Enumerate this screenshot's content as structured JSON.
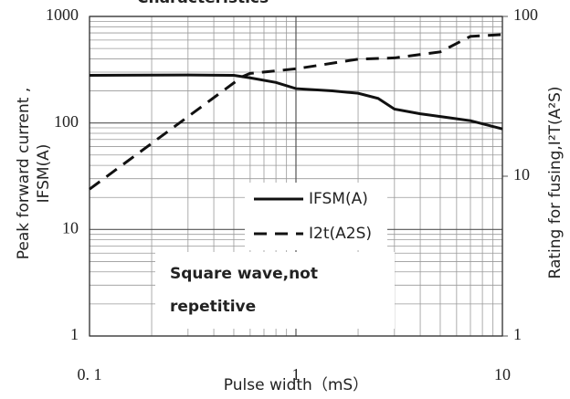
{
  "chart_data": {
    "type": "line",
    "title": "Characteristics",
    "xlabel": "Pulse width（mS）",
    "ylabel": [
      "Peak forward current ,",
      "IFSM(A)"
    ],
    "y2label": "Rating for fusing,I²T(A²S)",
    "annotation": [
      "Square wave,not",
      "repetitive"
    ],
    "log_x": true,
    "log_y": true,
    "grid": true,
    "legend_position": "center",
    "xlim": [
      0.1,
      10
    ],
    "xticks": [
      {
        "value": 0.1,
        "label": "0. 1"
      },
      1,
      10
    ],
    "xminorticks": [
      0.2,
      0.3,
      0.4,
      0.5,
      0.6,
      0.7,
      0.8,
      0.9,
      2,
      3,
      4,
      5,
      6,
      7,
      8,
      9
    ],
    "ylim": [
      1,
      1000
    ],
    "yticks": [
      1,
      10,
      100,
      1000
    ],
    "yminorticks": [
      2,
      3,
      4,
      5,
      6,
      7,
      8,
      9,
      20,
      30,
      40,
      50,
      60,
      70,
      80,
      90,
      200,
      300,
      400,
      500,
      600,
      700,
      800,
      900
    ],
    "y2lim": [
      1,
      100
    ],
    "y2ticks": [
      1,
      10,
      100
    ],
    "series": [
      {
        "name": "IFSM(A)",
        "color": "#111111",
        "dash": "solid",
        "axis": "y",
        "x": [
          0.1,
          0.3,
          0.5,
          0.6,
          0.8,
          1,
          1.5,
          2,
          2.5,
          3,
          4,
          5,
          7,
          10
        ],
        "values": [
          280,
          282,
          280,
          265,
          240,
          210,
          200,
          190,
          170,
          135,
          122,
          115,
          105,
          88
        ]
      },
      {
        "name": "I2t(A2S)",
        "color": "#111111",
        "dash": "dashed",
        "axis": "y2",
        "x": [
          0.1,
          0.55,
          0.6,
          1,
          2,
          3,
          5,
          7,
          10
        ],
        "values": [
          8.3,
          42,
          44,
          47,
          54,
          55,
          60,
          75,
          77
        ]
      }
    ]
  }
}
